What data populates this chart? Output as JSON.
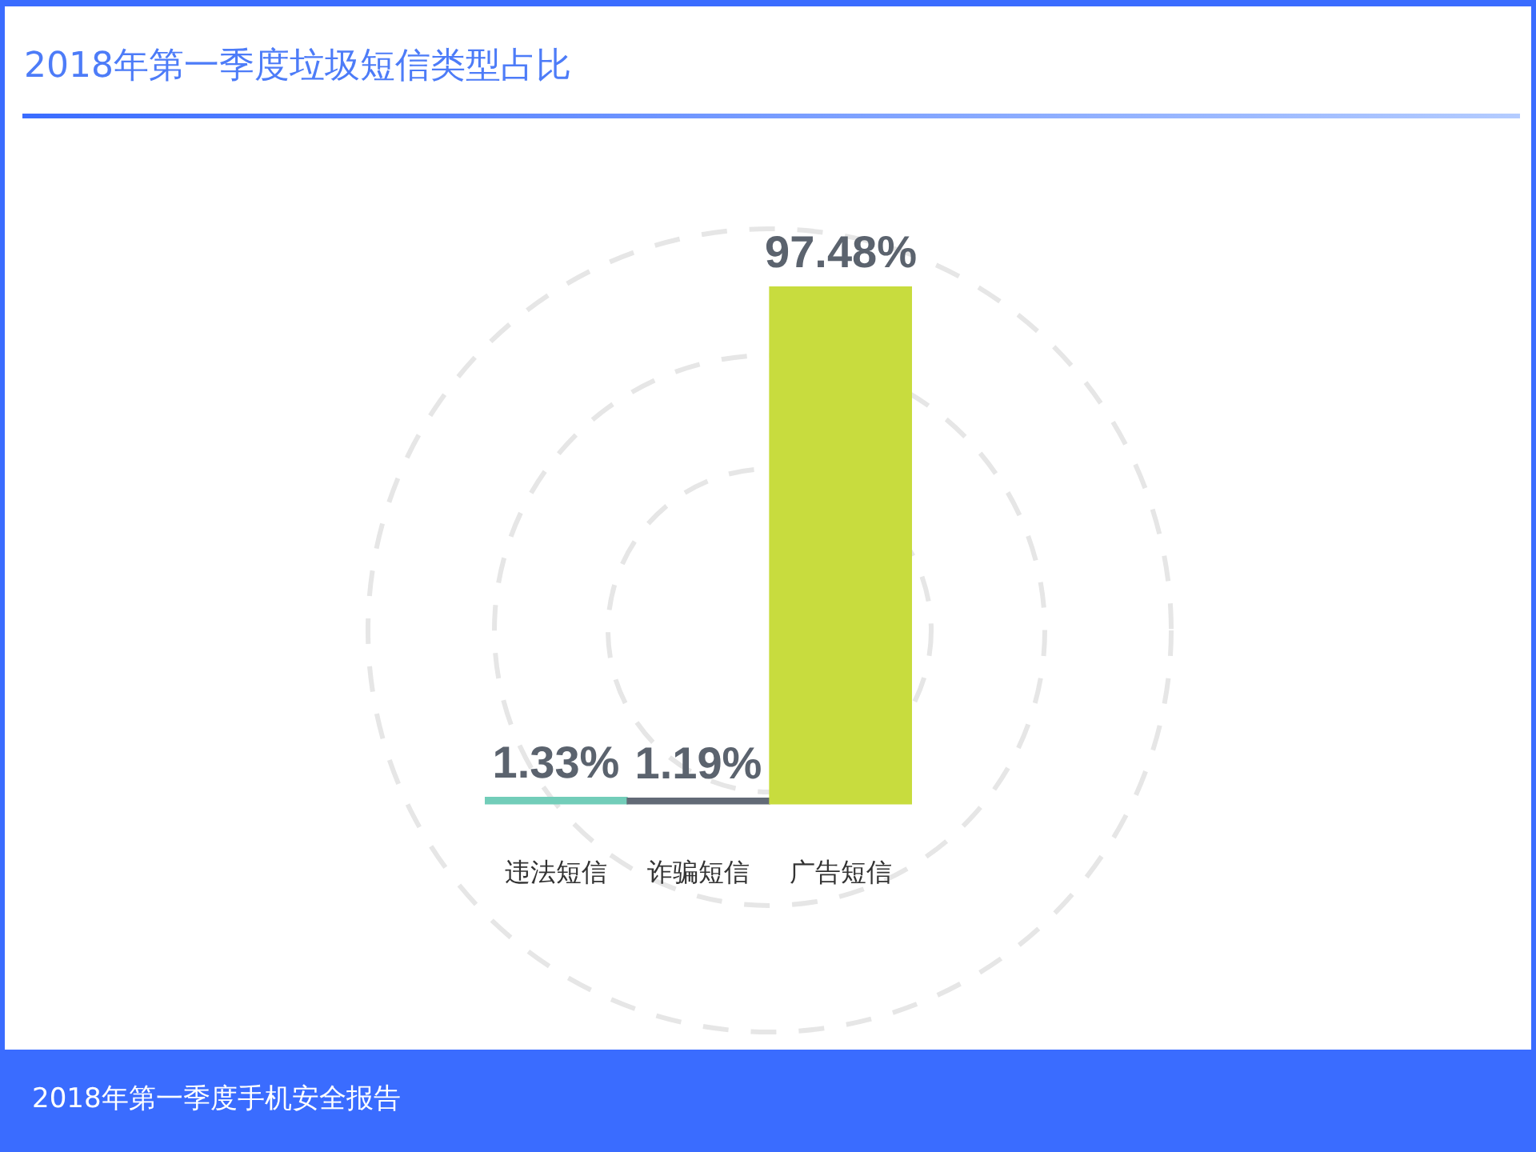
{
  "chart_data": {
    "type": "bar",
    "title": "2018年第一季度垃圾短信类型占比",
    "categories": [
      "违法短信",
      "诈骗短信",
      "广告短信"
    ],
    "values": [
      1.33,
      1.19,
      97.48
    ],
    "colors": [
      "#72cdb9",
      "#626a76",
      "#c8dc3e"
    ],
    "value_labels": [
      "1.33%",
      "1.19%",
      "97.48%"
    ],
    "annotations": [
      "2018年第一季度手机安全报告"
    ]
  }
}
